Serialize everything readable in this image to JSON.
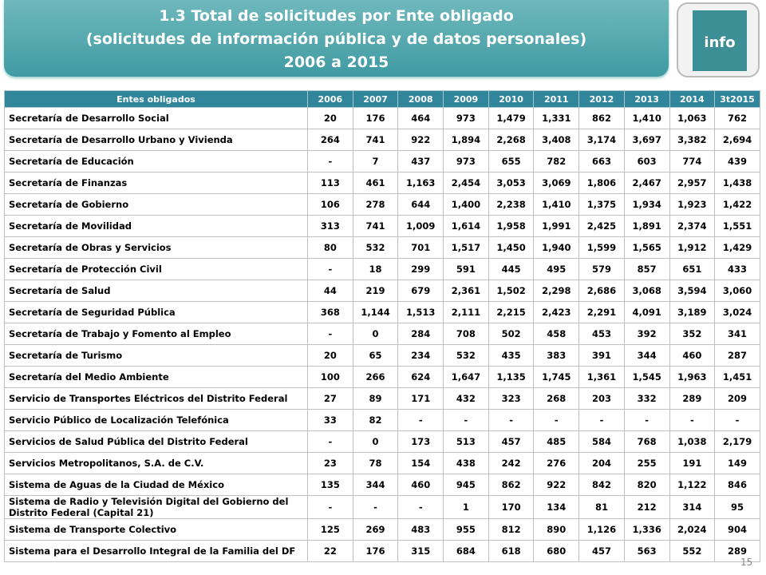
{
  "header": {
    "title_lines": [
      "1.3 Total de solicitudes por Ente obligado",
      "(solicitudes de información pública y de datos personales)",
      "2006 a 2015"
    ],
    "logo": "info"
  },
  "table": {
    "header": [
      "Entes obligados",
      "2006",
      "2007",
      "2008",
      "2009",
      "2010",
      "2011",
      "2012",
      "2013",
      "2014",
      "3t2015"
    ],
    "rows": [
      [
        "Secretaría de Desarrollo Social",
        "20",
        "176",
        "464",
        "973",
        "1,479",
        "1,331",
        "862",
        "1,410",
        "1,063",
        "762"
      ],
      [
        "Secretaría de Desarrollo Urbano y Vivienda",
        "264",
        "741",
        "922",
        "1,894",
        "2,268",
        "3,408",
        "3,174",
        "3,697",
        "3,382",
        "2,694"
      ],
      [
        "Secretaría de Educación",
        "-",
        "7",
        "437",
        "973",
        "655",
        "782",
        "663",
        "603",
        "774",
        "439"
      ],
      [
        "Secretaría de Finanzas",
        "113",
        "461",
        "1,163",
        "2,454",
        "3,053",
        "3,069",
        "1,806",
        "2,467",
        "2,957",
        "1,438"
      ],
      [
        "Secretaría de Gobierno",
        "106",
        "278",
        "644",
        "1,400",
        "2,238",
        "1,410",
        "1,375",
        "1,934",
        "1,923",
        "1,422"
      ],
      [
        "Secretaría de Movilidad",
        "313",
        "741",
        "1,009",
        "1,614",
        "1,958",
        "1,991",
        "2,425",
        "1,891",
        "2,374",
        "1,551"
      ],
      [
        "Secretaría de Obras y Servicios",
        "80",
        "532",
        "701",
        "1,517",
        "1,450",
        "1,940",
        "1,599",
        "1,565",
        "1,912",
        "1,429"
      ],
      [
        "Secretaría de Protección Civil",
        "-",
        "18",
        "299",
        "591",
        "445",
        "495",
        "579",
        "857",
        "651",
        "433"
      ],
      [
        "Secretaría de Salud",
        "44",
        "219",
        "679",
        "2,361",
        "1,502",
        "2,298",
        "2,686",
        "3,068",
        "3,594",
        "3,060"
      ],
      [
        "Secretaría de Seguridad Pública",
        "368",
        "1,144",
        "1,513",
        "2,111",
        "2,215",
        "2,423",
        "2,291",
        "4,091",
        "3,189",
        "3,024"
      ],
      [
        "Secretaría de Trabajo y Fomento al Empleo",
        "-",
        "0",
        "284",
        "708",
        "502",
        "458",
        "453",
        "392",
        "352",
        "341"
      ],
      [
        "Secretaría de Turismo",
        "20",
        "65",
        "234",
        "532",
        "435",
        "383",
        "391",
        "344",
        "460",
        "287"
      ],
      [
        "Secretaría del Medio Ambiente",
        "100",
        "266",
        "624",
        "1,647",
        "1,135",
        "1,745",
        "1,361",
        "1,545",
        "1,963",
        "1,451"
      ],
      [
        "Servicio de Transportes Eléctricos del Distrito Federal",
        "27",
        "89",
        "171",
        "432",
        "323",
        "268",
        "203",
        "332",
        "289",
        "209"
      ],
      [
        "Servicio Público de Localización Telefónica",
        "33",
        "82",
        "-",
        "-",
        "-",
        "-",
        "-",
        "-",
        "-",
        "-"
      ],
      [
        "Servicios de Salud Pública del Distrito Federal",
        "-",
        "0",
        "173",
        "513",
        "457",
        "485",
        "584",
        "768",
        "1,038",
        "2,179"
      ],
      [
        "Servicios Metropolitanos, S.A. de C.V.",
        "23",
        "78",
        "154",
        "438",
        "242",
        "276",
        "204",
        "255",
        "191",
        "149"
      ],
      [
        "Sistema de Aguas de la Ciudad de México",
        "135",
        "344",
        "460",
        "945",
        "862",
        "922",
        "842",
        "820",
        "1,122",
        "846"
      ],
      [
        "Sistema de Radio y Televisión Digital del Gobierno del Distrito Federal (Capital 21)",
        "-",
        "-",
        "-",
        "1",
        "170",
        "134",
        "81",
        "212",
        "314",
        "95"
      ],
      [
        "Sistema de Transporte Colectivo",
        "125",
        "269",
        "483",
        "955",
        "812",
        "890",
        "1,126",
        "1,336",
        "2,024",
        "904"
      ],
      [
        "Sistema para el Desarrollo Integral de la Familia del DF",
        "22",
        "176",
        "315",
        "684",
        "618",
        "680",
        "457",
        "563",
        "552",
        "289"
      ]
    ]
  },
  "page_number": "15"
}
